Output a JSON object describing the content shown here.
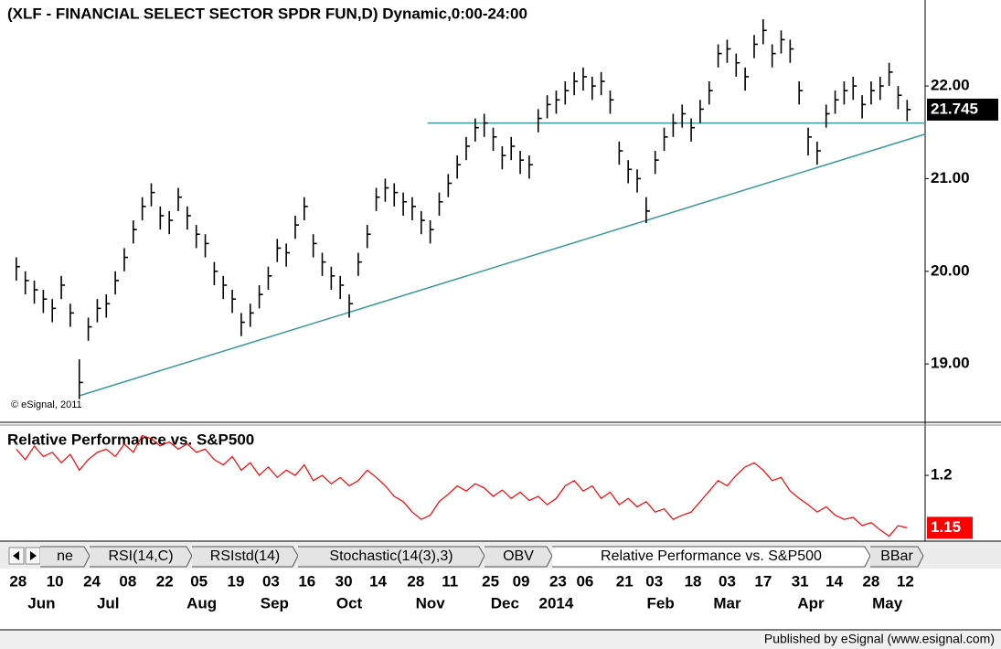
{
  "chart_data": [
    {
      "type": "ohlc",
      "title": "(XLF - FINANCIAL SELECT SECTOR SPDR FUN,D) Dynamic,0:00-24:00",
      "copyright": "© eSignal, 2011",
      "color": "#000000",
      "xlim": [
        -1,
        101
      ],
      "ylim": [
        18.37,
        22.79
      ],
      "yticks": [
        {
          "value": 19,
          "label": "19.00"
        },
        {
          "value": 20,
          "label": "20.00"
        },
        {
          "value": 21,
          "label": "21.00"
        },
        {
          "value": 22,
          "label": "22.00"
        }
      ],
      "xticks": [
        {
          "value": 0.2,
          "label": "28"
        },
        {
          "value": 4.3,
          "label": "10"
        },
        {
          "value": 8.4,
          "label": "24"
        },
        {
          "value": 12.4,
          "label": "08"
        },
        {
          "value": 16.5,
          "label": "22"
        },
        {
          "value": 20.3,
          "label": "05"
        },
        {
          "value": 24.4,
          "label": "19"
        },
        {
          "value": 28.3,
          "label": "03"
        },
        {
          "value": 32.3,
          "label": "16"
        },
        {
          "value": 36.4,
          "label": "30"
        },
        {
          "value": 40.2,
          "label": "14"
        },
        {
          "value": 44.4,
          "label": "28"
        },
        {
          "value": 48.2,
          "label": "11"
        },
        {
          "value": 52.7,
          "label": "25"
        },
        {
          "value": 56.1,
          "label": "09"
        },
        {
          "value": 60.2,
          "label": "23"
        },
        {
          "value": 63.2,
          "label": "06"
        },
        {
          "value": 67.6,
          "label": "21"
        },
        {
          "value": 70.9,
          "label": "03"
        },
        {
          "value": 75.2,
          "label": "18"
        },
        {
          "value": 79,
          "label": "03"
        },
        {
          "value": 83,
          "label": "17"
        },
        {
          "value": 87.1,
          "label": "31"
        },
        {
          "value": 90.9,
          "label": "14"
        },
        {
          "value": 95,
          "label": "28"
        },
        {
          "value": 98.8,
          "label": "12"
        }
      ],
      "month_ticks": [
        {
          "value": 2.8,
          "label": "Jun"
        },
        {
          "value": 10.2,
          "label": "Jul"
        },
        {
          "value": 20.6,
          "label": "Aug"
        },
        {
          "value": 28.7,
          "label": "Sep"
        },
        {
          "value": 37,
          "label": "Oct"
        },
        {
          "value": 46,
          "label": "Nov"
        },
        {
          "value": 54.3,
          "label": "Dec"
        },
        {
          "value": 60,
          "label": "2014"
        },
        {
          "value": 71.6,
          "label": "Feb"
        },
        {
          "value": 79,
          "label": "Mar"
        },
        {
          "value": 88.3,
          "label": "Apr"
        },
        {
          "value": 96.8,
          "label": "May"
        }
      ],
      "close": [
        20.05,
        19.9,
        19.8,
        19.7,
        19.6,
        19.85,
        19.55,
        18.8,
        19.4,
        19.6,
        19.65,
        19.9,
        20.15,
        20.45,
        20.7,
        20.85,
        20.6,
        20.55,
        20.8,
        20.6,
        20.4,
        20.3,
        20,
        19.85,
        19.7,
        19.45,
        19.55,
        19.75,
        19.95,
        20.25,
        20.2,
        20.5,
        20.7,
        20.3,
        20.1,
        19.95,
        19.85,
        19.65,
        20.1,
        20.4,
        20.8,
        20.9,
        20.85,
        20.75,
        20.7,
        20.55,
        20.45,
        20.75,
        20.95,
        21.15,
        21.35,
        21.55,
        21.6,
        21.45,
        21.25,
        21.35,
        21.2,
        21.15,
        21.65,
        21.8,
        21.85,
        21.95,
        22.05,
        22.1,
        22,
        22.05,
        21.85,
        21.3,
        21.1,
        21,
        20.65,
        21.2,
        21.45,
        21.6,
        21.7,
        21.55,
        21.75,
        21.95,
        22.35,
        22.4,
        22.25,
        22.1,
        22.45,
        22.6,
        22.35,
        22.5,
        22.4,
        21.95,
        21.45,
        21.3,
        21.7,
        21.85,
        21.95,
        22,
        21.8,
        21.95,
        22,
        22.15,
        21.9,
        21.745
      ],
      "high": [
        20.15,
        20,
        19.9,
        19.8,
        19.7,
        19.95,
        19.65,
        19.05,
        19.5,
        19.7,
        19.75,
        20,
        20.25,
        20.55,
        20.8,
        20.95,
        20.7,
        20.65,
        20.9,
        20.7,
        20.5,
        20.4,
        20.1,
        19.95,
        19.8,
        19.55,
        19.65,
        19.85,
        20.05,
        20.35,
        20.3,
        20.6,
        20.8,
        20.4,
        20.2,
        20.05,
        19.95,
        19.75,
        20.2,
        20.5,
        20.9,
        21,
        20.95,
        20.85,
        20.8,
        20.65,
        20.55,
        20.85,
        21.05,
        21.25,
        21.45,
        21.65,
        21.7,
        21.55,
        21.35,
        21.45,
        21.3,
        21.25,
        21.75,
        21.9,
        21.95,
        22.05,
        22.15,
        22.2,
        22.1,
        22.15,
        21.95,
        21.4,
        21.2,
        21.1,
        20.8,
        21.3,
        21.55,
        21.7,
        21.8,
        21.65,
        21.85,
        22.05,
        22.45,
        22.5,
        22.35,
        22.2,
        22.55,
        22.72,
        22.45,
        22.6,
        22.5,
        22.05,
        21.55,
        21.4,
        21.8,
        21.95,
        22.05,
        22.1,
        21.9,
        22.05,
        22.1,
        22.25,
        22,
        21.85
      ],
      "low": [
        19.9,
        19.75,
        19.65,
        19.55,
        19.45,
        19.7,
        19.4,
        18.62,
        19.25,
        19.45,
        19.5,
        19.75,
        20,
        20.3,
        20.55,
        20.7,
        20.45,
        20.4,
        20.65,
        20.45,
        20.25,
        20.15,
        19.85,
        19.7,
        19.55,
        19.3,
        19.4,
        19.6,
        19.8,
        20.1,
        20.05,
        20.35,
        20.55,
        20.15,
        19.95,
        19.8,
        19.7,
        19.5,
        19.95,
        20.25,
        20.65,
        20.75,
        20.7,
        20.6,
        20.55,
        20.4,
        20.3,
        20.6,
        20.8,
        21,
        21.2,
        21.4,
        21.45,
        21.3,
        21.1,
        21.2,
        21.05,
        21,
        21.5,
        21.65,
        21.7,
        21.8,
        21.9,
        21.95,
        21.85,
        21.9,
        21.7,
        21.15,
        20.95,
        20.85,
        20.52,
        21.05,
        21.3,
        21.45,
        21.55,
        21.4,
        21.6,
        21.8,
        22.2,
        22.25,
        22.1,
        21.95,
        22.3,
        22.45,
        22.2,
        22.35,
        22.25,
        21.8,
        21.25,
        21.15,
        21.55,
        21.7,
        21.8,
        21.85,
        21.65,
        21.8,
        21.85,
        22,
        21.75,
        21.62
      ],
      "trendlines": [
        {
          "color": "#3a9a9a",
          "x": [
            45.7,
            101
          ],
          "y": [
            21.6,
            21.6
          ]
        },
        {
          "color": "#3a9a9a",
          "x": [
            7.1,
            101
          ],
          "y": [
            18.66,
            21.48
          ]
        }
      ]
    },
    {
      "type": "line",
      "title": "Relative Performance vs. S&P500",
      "color": "#ff0000",
      "xlim": [
        -1,
        101
      ],
      "ylim": [
        1.139,
        1.248
      ],
      "yticks": [
        1.2
      ],
      "values": [
        1.225,
        1.215,
        1.228,
        1.218,
        1.222,
        1.212,
        1.22,
        1.205,
        1.215,
        1.222,
        1.225,
        1.218,
        1.23,
        1.222,
        1.238,
        1.235,
        1.228,
        1.232,
        1.225,
        1.23,
        1.222,
        1.225,
        1.215,
        1.21,
        1.218,
        1.205,
        1.212,
        1.2,
        1.208,
        1.198,
        1.205,
        1.2,
        1.21,
        1.195,
        1.2,
        1.192,
        1.198,
        1.19,
        1.195,
        1.205,
        1.198,
        1.19,
        1.18,
        1.175,
        1.165,
        1.158,
        1.162,
        1.175,
        1.182,
        1.19,
        1.185,
        1.192,
        1.188,
        1.18,
        1.186,
        1.178,
        1.184,
        1.176,
        1.18,
        1.172,
        1.178,
        1.19,
        1.195,
        1.185,
        1.19,
        1.178,
        1.184,
        1.172,
        1.178,
        1.17,
        1.175,
        1.165,
        1.168,
        1.158,
        1.162,
        1.165,
        1.175,
        1.185,
        1.195,
        1.19,
        1.2,
        1.208,
        1.212,
        1.205,
        1.195,
        1.198,
        1.185,
        1.178,
        1.172,
        1.165,
        1.17,
        1.162,
        1.158,
        1.16,
        1.152,
        1.155,
        1.148,
        1.142,
        1.152,
        1.15
      ]
    }
  ],
  "tabs": [
    "ne",
    "RSI(14,C)",
    "RSIstd(14)",
    "Stochastic(14(3),3)",
    "OBV",
    "Relative Performance vs. S&P500",
    "BBar"
  ],
  "footer": "Published by eSignal (www.esignal.com)"
}
